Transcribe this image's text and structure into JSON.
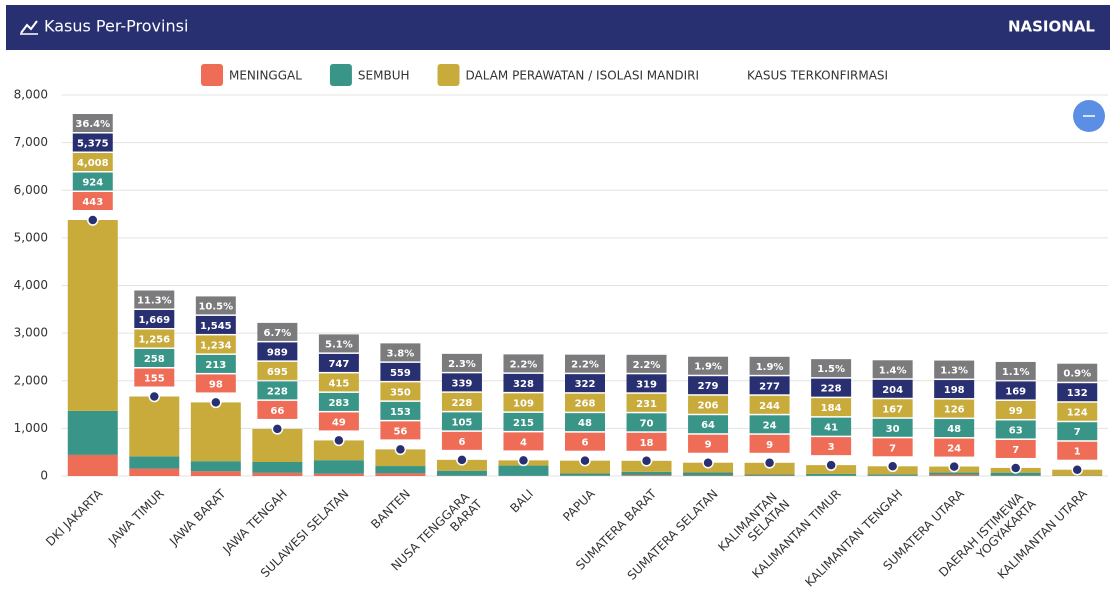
{
  "header": {
    "title": "Kasus Per-Provinsi",
    "scope": "NASIONAL"
  },
  "chart_data": {
    "type": "bar",
    "stacked": true,
    "categories": [
      "DKI JAKARTA",
      "JAWA TIMUR",
      "JAWA BARAT",
      "JAWA TENGAH",
      "SULAWESI SELATAN",
      "BANTEN",
      "NUSA TENGGARA BARAT",
      "BALI",
      "PAPUA",
      "SUMATERA BARAT",
      "SUMATERA SELATAN",
      "KALIMANTAN SELATAN",
      "KALIMANTAN TIMUR",
      "KALIMANTAN TENGAH",
      "SUMATERA UTARA",
      "DAERAH ISTIMEWA YOGYAKARTA",
      "KALIMANTAN UTARA"
    ],
    "series": [
      {
        "name": "MENINGGAL",
        "color": "#ef6c57",
        "values": [
          443,
          155,
          98,
          66,
          49,
          56,
          6,
          4,
          6,
          18,
          9,
          9,
          3,
          7,
          24,
          7,
          1
        ]
      },
      {
        "name": "SEMBUH",
        "color": "#3a9589",
        "values": [
          924,
          258,
          213,
          228,
          283,
          153,
          105,
          215,
          48,
          70,
          64,
          24,
          41,
          30,
          48,
          63,
          7
        ]
      },
      {
        "name": "DALAM PERAWATAN / ISOLASI MANDIRI",
        "color": "#c9ab3b",
        "values": [
          4008,
          1256,
          1234,
          695,
          415,
          350,
          228,
          109,
          268,
          231,
          206,
          244,
          184,
          167,
          126,
          99,
          124
        ]
      },
      {
        "name": "KASUS TERKONFIRMASI",
        "color": "#283072",
        "type": "scatter",
        "values": [
          5375,
          1669,
          1545,
          989,
          747,
          559,
          339,
          328,
          322,
          319,
          279,
          277,
          228,
          204,
          198,
          169,
          132
        ],
        "value_labels": [
          "5,375",
          "1,669",
          "1,545",
          "989",
          "747",
          "559",
          "339",
          "328",
          "322",
          "319",
          "279",
          "277",
          "228",
          "204",
          "198",
          "169",
          "132"
        ]
      }
    ],
    "share": {
      "color": "#7b7b7d",
      "values": [
        36.4,
        11.3,
        10.5,
        6.7,
        5.1,
        3.8,
        2.3,
        2.2,
        2.2,
        2.2,
        1.9,
        1.9,
        1.5,
        1.4,
        1.3,
        1.1,
        0.9
      ],
      "value_labels": [
        "36.4%",
        "11.3%",
        "10.5%",
        "6.7%",
        "5.1%",
        "3.8%",
        "2.3%",
        "2.2%",
        "2.2%",
        "2.2%",
        "1.9%",
        "1.9%",
        "1.5%",
        "1.4%",
        "1.3%",
        "1.1%",
        "0.9%"
      ]
    },
    "value_labels": [
      [
        "443",
        "155",
        "98",
        "66",
        "49",
        "56",
        "6",
        "4",
        "6",
        "18",
        "9",
        "9",
        "3",
        "7",
        "24",
        "7",
        "1"
      ],
      [
        "924",
        "258",
        "213",
        "228",
        "283",
        "153",
        "105",
        "215",
        "48",
        "70",
        "64",
        "24",
        "41",
        "30",
        "48",
        "63",
        "7"
      ],
      [
        "4,008",
        "1,256",
        "1,234",
        "695",
        "415",
        "350",
        "228",
        "109",
        "268",
        "231",
        "206",
        "244",
        "184",
        "167",
        "126",
        "99",
        "124"
      ]
    ],
    "ylim": [
      0,
      8000
    ],
    "yticks": [
      0,
      {
        "value": 1000,
        "label": "1,000"
      },
      {
        "value": 2000,
        "label": "2,000"
      },
      {
        "value": 3000,
        "label": "3,000"
      },
      {
        "value": 4000,
        "label": "4,000"
      },
      {
        "value": 5000,
        "label": "5,000"
      },
      {
        "value": 6000,
        "label": "6,000"
      },
      {
        "value": 7000,
        "label": "7,000"
      },
      {
        "value": 8000,
        "label": "8,000"
      }
    ],
    "grid": true
  }
}
